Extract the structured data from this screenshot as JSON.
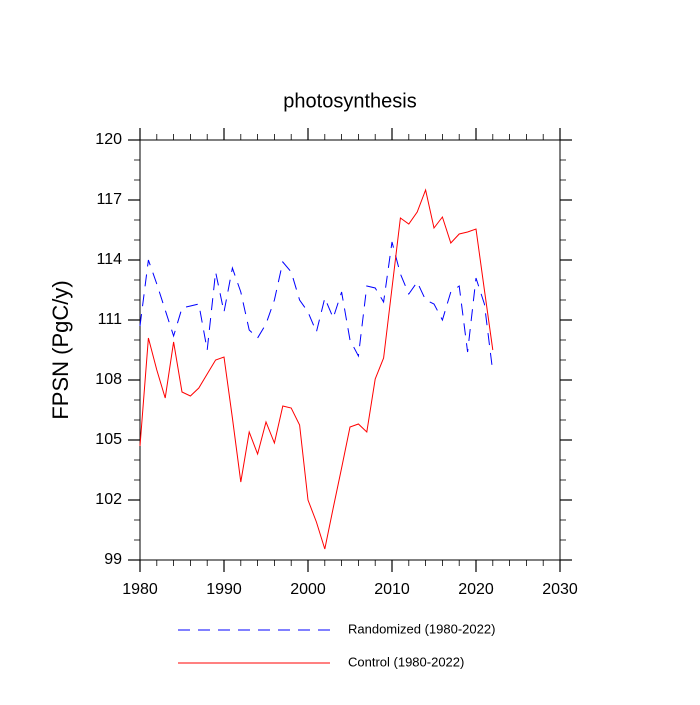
{
  "chart_data": {
    "type": "line",
    "title": "photosynthesis",
    "y_label": "FPSN  (PgC/y)",
    "x": [
      1980,
      1981,
      1982,
      1983,
      1984,
      1985,
      1986,
      1987,
      1988,
      1989,
      1990,
      1991,
      1992,
      1993,
      1994,
      1995,
      1996,
      1997,
      1998,
      1999,
      2000,
      2001,
      2002,
      2003,
      2004,
      2005,
      2006,
      2007,
      2008,
      2009,
      2010,
      2011,
      2012,
      2013,
      2014,
      2015,
      2016,
      2017,
      2018,
      2019,
      2020,
      2021,
      2022
    ],
    "series": [
      {
        "name": "Randomized (1980-2022)",
        "color": "#0000ff",
        "dashed": true,
        "values": [
          110.7,
          114.0,
          112.8,
          111.5,
          110.2,
          111.6,
          111.7,
          111.8,
          109.5,
          113.4,
          111.4,
          113.6,
          112.4,
          110.5,
          110.1,
          110.8,
          112.0,
          113.9,
          113.4,
          112.0,
          111.4,
          110.4,
          112.1,
          111.1,
          112.4,
          110.0,
          109.2,
          112.7,
          112.6,
          111.9,
          114.9,
          113.3,
          112.3,
          112.9,
          112.0,
          111.8,
          111.0,
          112.4,
          112.7,
          109.4,
          113.1,
          111.8,
          108.4
        ]
      },
      {
        "name": "Control (1980-2022)",
        "color": "#ff0000",
        "dashed": false,
        "values": [
          104.7,
          110.1,
          108.5,
          107.1,
          109.9,
          107.4,
          107.2,
          107.6,
          108.3,
          109.0,
          109.15,
          106.1,
          102.9,
          105.4,
          104.3,
          105.9,
          104.85,
          106.7,
          106.6,
          105.75,
          102.0,
          100.9,
          99.55,
          101.6,
          103.6,
          105.65,
          105.8,
          105.4,
          108.05,
          109.1,
          112.6,
          116.1,
          115.8,
          116.4,
          117.5,
          115.6,
          116.15,
          114.85,
          115.3,
          115.4,
          115.55,
          112.5,
          109.5
        ]
      }
    ],
    "xlim": [
      1980,
      2030
    ],
    "xticks": [
      1980,
      1990,
      2000,
      2010,
      2020,
      2030
    ],
    "xminorticks": [
      1982,
      1984,
      1986,
      1988,
      1992,
      1994,
      1996,
      1998,
      2002,
      2004,
      2006,
      2008,
      2012,
      2014,
      2016,
      2018,
      2022,
      2024,
      2026,
      2028
    ],
    "ylim": [
      99,
      120
    ],
    "yticks": [
      99,
      102,
      105,
      108,
      111,
      114,
      117,
      120
    ],
    "yminorticks": [
      100,
      101,
      103,
      104,
      106,
      107,
      109,
      110,
      112,
      113,
      115,
      116,
      118,
      119
    ]
  }
}
